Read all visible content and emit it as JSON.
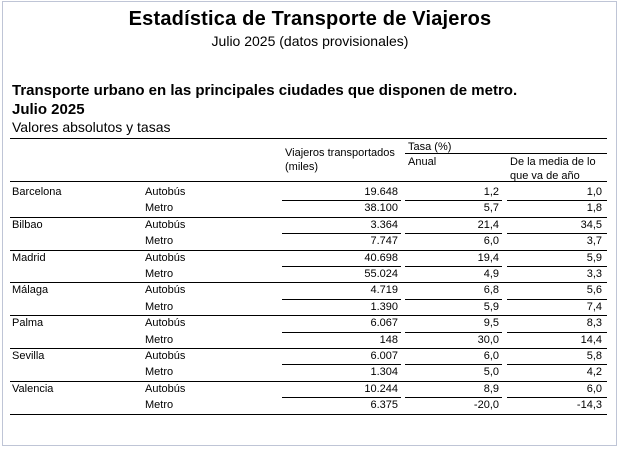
{
  "title": "Estadística de Transporte de Viajeros",
  "subtitle": "Julio 2025 (datos provisionales)",
  "heading": "Transporte urbano en las principales ciudades que disponen de metro.",
  "month": "Julio 2025",
  "units": "Valores absolutos y tasas",
  "headers": {
    "viajeros": "Viajeros transportados (miles)",
    "tasa": "Tasa (%)",
    "anual": "Anual",
    "media": "De la media de lo que va de año"
  },
  "rows": [
    {
      "city": "Barcelona",
      "mode": "Autobús",
      "viajeros": "19.648",
      "anual": "1,2",
      "media": "1,0"
    },
    {
      "city": "",
      "mode": "Metro",
      "viajeros": "38.100",
      "anual": "5,7",
      "media": "1,8"
    },
    {
      "city": "Bilbao",
      "mode": "Autobús",
      "viajeros": "3.364",
      "anual": "21,4",
      "media": "34,5"
    },
    {
      "city": "",
      "mode": "Metro",
      "viajeros": "7.747",
      "anual": "6,0",
      "media": "3,7"
    },
    {
      "city": "Madrid",
      "mode": "Autobús",
      "viajeros": "40.698",
      "anual": "19,4",
      "media": "5,9"
    },
    {
      "city": "",
      "mode": "Metro",
      "viajeros": "55.024",
      "anual": "4,9",
      "media": "3,3"
    },
    {
      "city": "Málaga",
      "mode": "Autobús",
      "viajeros": "4.719",
      "anual": "6,8",
      "media": "5,6"
    },
    {
      "city": "",
      "mode": "Metro",
      "viajeros": "1.390",
      "anual": "5,9",
      "media": "7,4"
    },
    {
      "city": "Palma",
      "mode": "Autobús",
      "viajeros": "6.067",
      "anual": "9,5",
      "media": "8,3"
    },
    {
      "city": "",
      "mode": "Metro",
      "viajeros": "148",
      "anual": "30,0",
      "media": "14,4"
    },
    {
      "city": "Sevilla",
      "mode": "Autobús",
      "viajeros": "6.007",
      "anual": "6,0",
      "media": "5,8"
    },
    {
      "city": "",
      "mode": "Metro",
      "viajeros": "1.304",
      "anual": "5,0",
      "media": "4,2"
    },
    {
      "city": "Valencia",
      "mode": "Autobús",
      "viajeros": "10.244",
      "anual": "8,9",
      "media": "6,0"
    },
    {
      "city": "",
      "mode": "Metro",
      "viajeros": "6.375",
      "anual": "-20,0",
      "media": "-14,3"
    }
  ]
}
